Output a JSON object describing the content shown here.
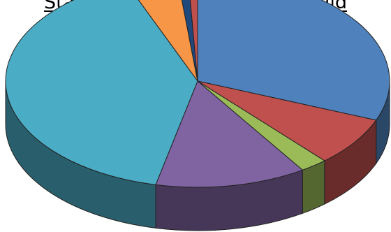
{
  "chart_data": {
    "type": "pie",
    "title": "Status of reason of Female child",
    "three_d": true,
    "slices": [
      {
        "value": 31.0,
        "color": "#4F81BD"
      },
      {
        "value": 7.5,
        "color": "#C0504D"
      },
      {
        "value": 2.3,
        "color": "#9BBB59"
      },
      {
        "value": 12.7,
        "color": "#8064A2"
      },
      {
        "value": 40.4,
        "color": "#4BACC6"
      },
      {
        "value": 4.4,
        "color": "#F79646"
      },
      {
        "value": 0.9,
        "color": "#1F497D"
      },
      {
        "value": 0.8,
        "color": "#C0504D"
      }
    ]
  }
}
